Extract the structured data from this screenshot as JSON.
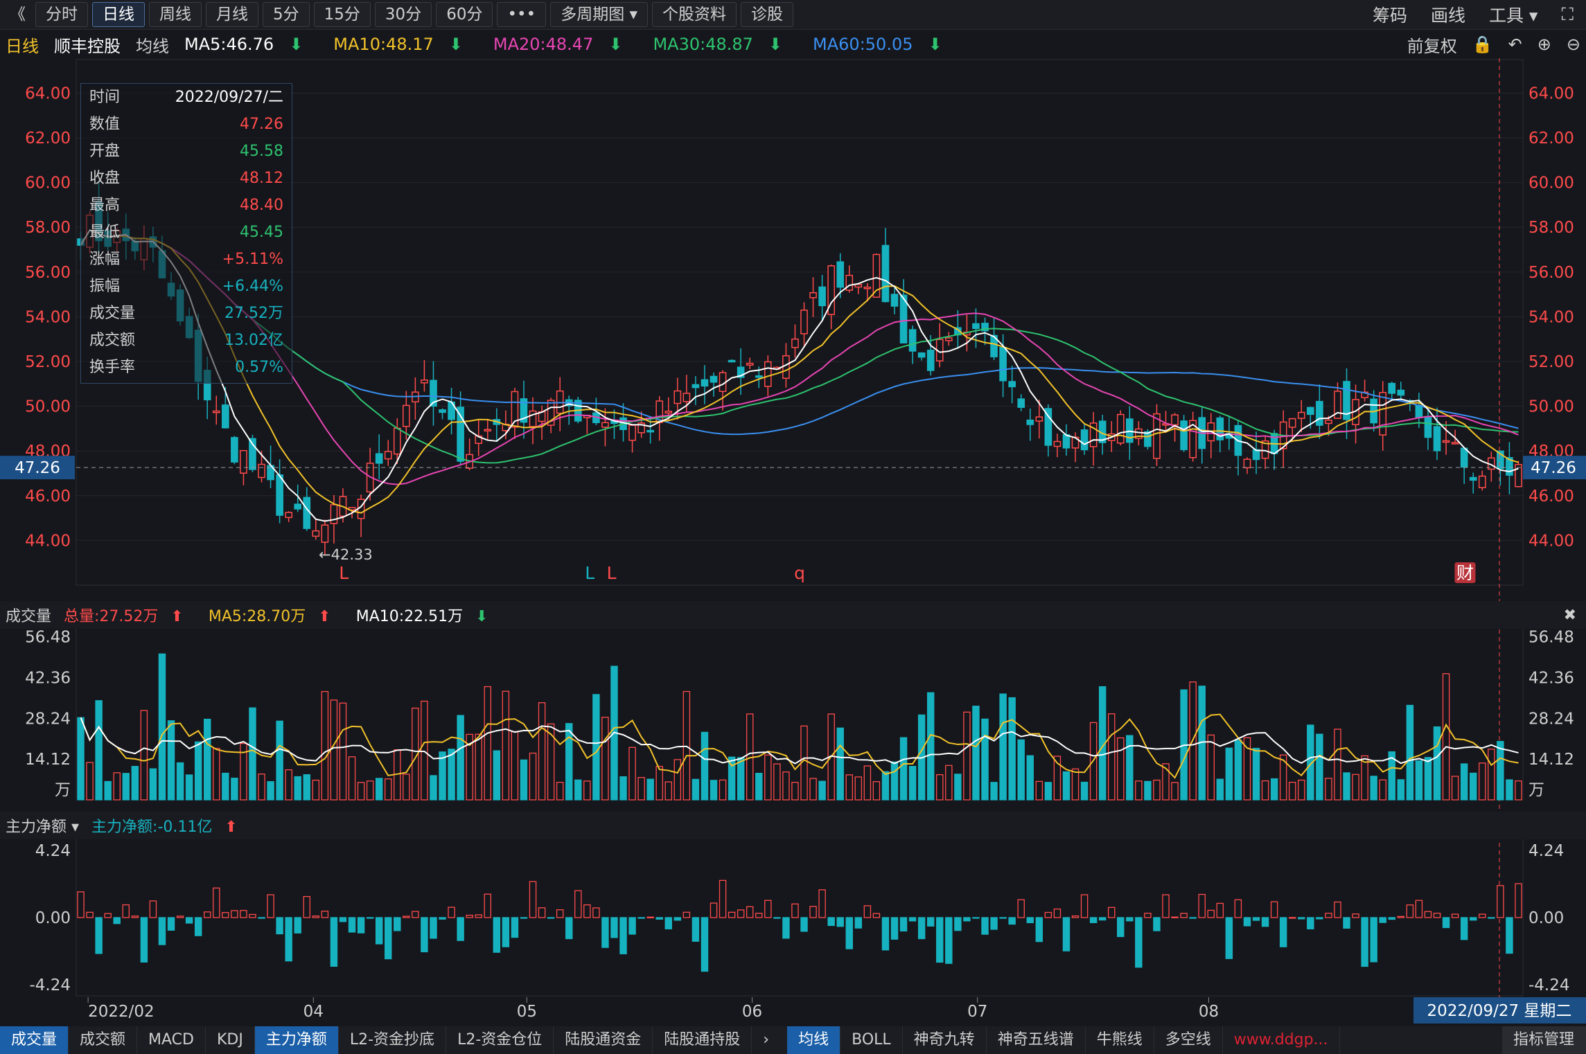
{
  "topbar": {
    "back": "《",
    "periods": [
      "分时",
      "日线",
      "周线",
      "月线",
      "5分",
      "15分",
      "30分",
      "60分"
    ],
    "active_period": "日线",
    "more": "•••",
    "multi": "多周期图 ▾",
    "profile": "个股资料",
    "diagnose": "诊股",
    "right": [
      "筹码",
      "画线",
      "工具 ▾"
    ],
    "expand_icon": "expand-icon"
  },
  "mabar": {
    "period": "日线",
    "stock": "顺丰控股",
    "avg": "均线",
    "ma5": "MA5:46.76",
    "ma10": "MA10:48.17",
    "ma20": "MA20:48.47",
    "ma30": "MA30:48.87",
    "ma60": "MA60:50.05",
    "adjust": "前复权"
  },
  "colors": {
    "up": "#ff4b4b",
    "down": "#17b2c0",
    "ma5": "#ffffff",
    "ma10": "#f2c22a",
    "ma20": "#e846b4",
    "ma30": "#2ec36f",
    "ma60": "#3a8ff0"
  },
  "tooltip": {
    "rows": [
      {
        "label": "时间",
        "value": "2022/09/27/二",
        "color": "#ffffff"
      },
      {
        "label": "数值",
        "value": "47.26",
        "color": "#ff4b4b"
      },
      {
        "label": "开盘",
        "value": "45.58",
        "color": "#2ec36f"
      },
      {
        "label": "收盘",
        "value": "48.12",
        "color": "#ff4b4b"
      },
      {
        "label": "最高",
        "value": "48.40",
        "color": "#ff4b4b"
      },
      {
        "label": "最低",
        "value": "45.45",
        "color": "#2ec36f"
      },
      {
        "label": "涨幅",
        "value": "+5.11%",
        "color": "#ff4b4b"
      },
      {
        "label": "振幅",
        "value": "+6.44%",
        "color": "#17b2c0"
      },
      {
        "label": "成交量",
        "value": "27.52万",
        "color": "#17b2c0"
      },
      {
        "label": "成交额",
        "value": "13.02亿",
        "color": "#17b2c0"
      },
      {
        "label": "换手率",
        "value": "0.57%",
        "color": "#17b2c0"
      }
    ]
  },
  "price_axis": {
    "ticks": [
      "64.00",
      "62.00",
      "60.00",
      "58.00",
      "56.00",
      "54.00",
      "52.00",
      "50.00",
      "48.00",
      "46.00",
      "44.00"
    ],
    "current": "47.26",
    "low_mark": "←42.33",
    "high_mark_partial": "0.22"
  },
  "markers": [
    {
      "text": "L",
      "color": "#ff4b4b",
      "at": 0.185
    },
    {
      "text": "L",
      "color": "#17b2c0",
      "at": 0.355
    },
    {
      "text": "L",
      "color": "#ff4b4b",
      "at": 0.37
    },
    {
      "text": "q",
      "color": "#ff4b4b",
      "at": 0.5
    },
    {
      "text": "财",
      "color": "#ffffff",
      "at": 0.96
    }
  ],
  "volume": {
    "label": "成交量",
    "total": "总量:27.52万",
    "ma5": "MA5:28.70万",
    "ma10": "MA10:22.51万",
    "ticks": [
      "56.48",
      "42.36",
      "28.24",
      "14.12",
      "万"
    ]
  },
  "flow": {
    "label": "主力净额 ▾",
    "value": "主力净额:-0.11亿",
    "ticks": [
      "4.24",
      "0.00",
      "-4.24"
    ]
  },
  "dates": {
    "ticks": [
      "2022/02",
      "04",
      "05",
      "06",
      "07",
      "08",
      "09"
    ],
    "cursor": "2022/09/27 星期二"
  },
  "bottom_tabs": [
    "成交量",
    "成交额",
    "MACD",
    "KDJ",
    "主力净额",
    "L2-资金抄底",
    "L2-资金仓位",
    "陆股通资金",
    "陆股通持股"
  ],
  "bottom_tabs_active": [
    "成交量",
    "主力净额"
  ],
  "indicator_tabs": [
    "均线",
    "BOLL",
    "神奇九转",
    "神奇五线谱",
    "牛熊线",
    "多空线"
  ],
  "indicator_active": "均线",
  "indicator_manage": "指标管理",
  "watermark": "www.ddgp..."
}
